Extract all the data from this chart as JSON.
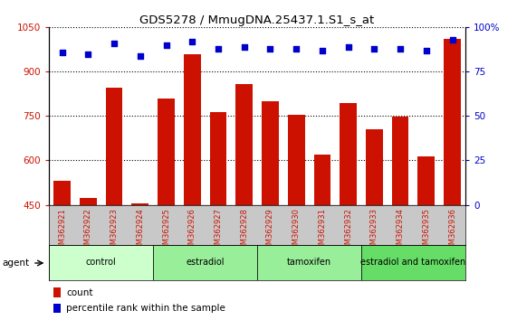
{
  "title": "GDS5278 / MmugDNA.25437.1.S1_s_at",
  "categories": [
    "GSM362921",
    "GSM362922",
    "GSM362923",
    "GSM362924",
    "GSM362925",
    "GSM362926",
    "GSM362927",
    "GSM362928",
    "GSM362929",
    "GSM362930",
    "GSM362931",
    "GSM362932",
    "GSM362933",
    "GSM362934",
    "GSM362935",
    "GSM362936"
  ],
  "bar_values": [
    530,
    473,
    845,
    455,
    810,
    960,
    762,
    858,
    800,
    754,
    620,
    793,
    706,
    748,
    615,
    1010
  ],
  "dot_values": [
    86,
    85,
    91,
    84,
    90,
    92,
    88,
    89,
    88,
    88,
    87,
    89,
    88,
    88,
    87,
    93
  ],
  "bar_color": "#cc1100",
  "dot_color": "#0000cc",
  "ylim_left": [
    450,
    1050
  ],
  "ylim_right": [
    0,
    100
  ],
  "yticks_left": [
    450,
    600,
    750,
    900,
    1050
  ],
  "yticks_right": [
    0,
    25,
    50,
    75,
    100
  ],
  "groups": [
    {
      "label": "control",
      "start": 0,
      "end": 4
    },
    {
      "label": "estradiol",
      "start": 4,
      "end": 8
    },
    {
      "label": "tamoxifen",
      "start": 8,
      "end": 12
    },
    {
      "label": "estradiol and tamoxifen",
      "start": 12,
      "end": 16
    }
  ],
  "group_colors": [
    "#ccffcc",
    "#99ee99",
    "#99ee99",
    "#66dd66"
  ],
  "agent_label": "agent",
  "legend_count_label": "count",
  "legend_pct_label": "percentile rank within the sample",
  "bg_color": "#ffffff",
  "plot_bg_color": "#ffffff",
  "xtick_bg": "#c8c8c8",
  "fig_width": 5.71,
  "fig_height": 3.54,
  "fig_dpi": 100
}
